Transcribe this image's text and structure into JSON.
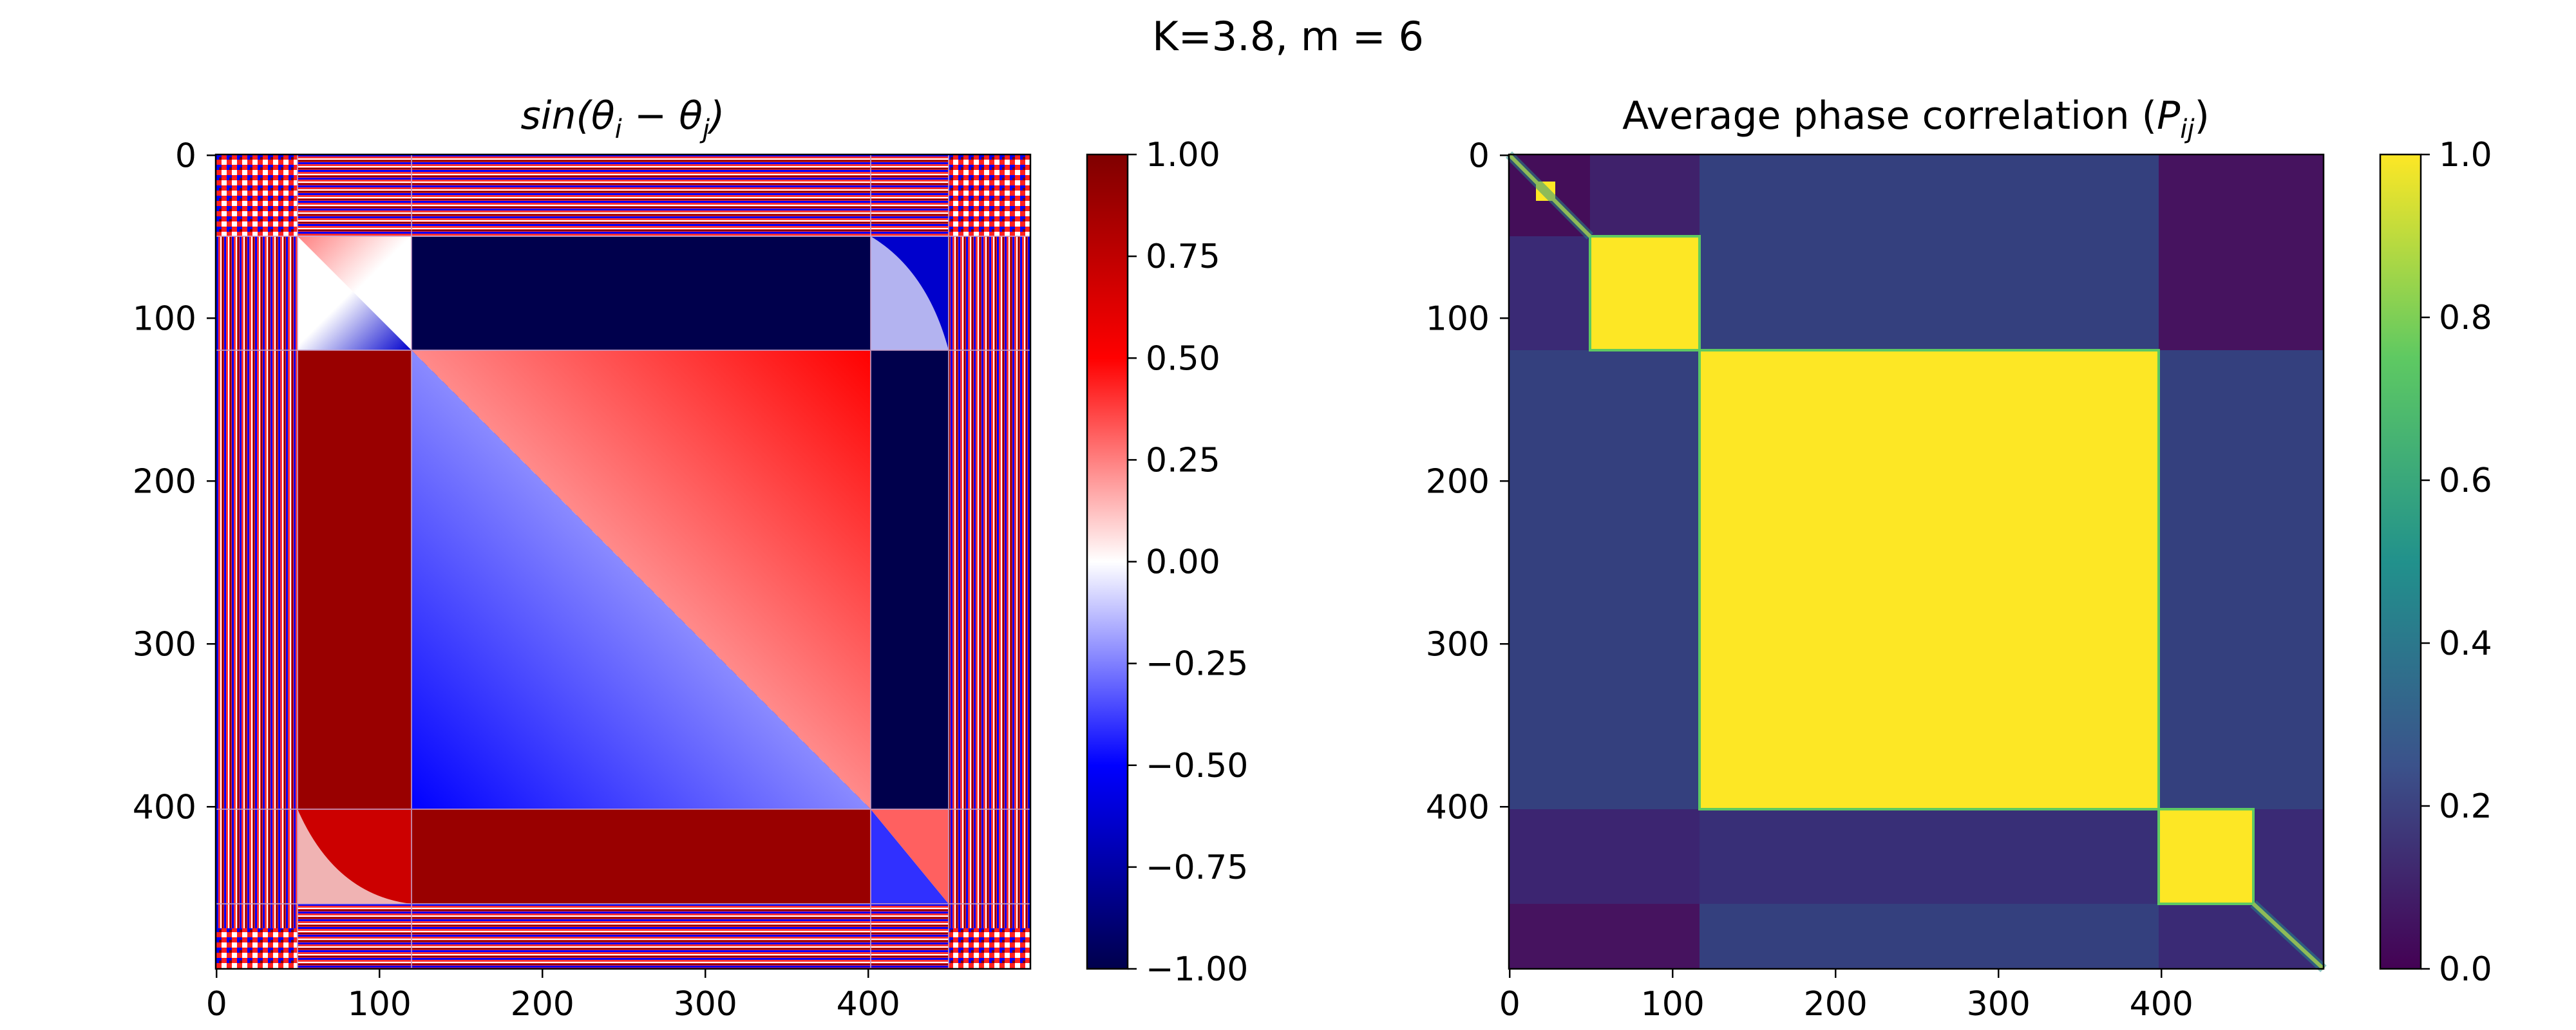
{
  "suptitle": "K=3.8, m = 6",
  "chart_data": [
    {
      "type": "heatmap",
      "title": "sin(θi − θj)",
      "title_parts": {
        "fn": "sin(",
        "a": "θ",
        "a_sub": "i",
        "minus": " − ",
        "b": "θ",
        "b_sub": "j",
        "close": ")"
      },
      "matrix_size": 500,
      "colormap": "seismic",
      "value_range": [
        -1.0,
        1.0
      ],
      "cluster_boundaries": [
        50,
        120,
        402,
        460
      ],
      "xticks": [
        0,
        100,
        200,
        300,
        400
      ],
      "yticks": [
        0,
        100,
        200,
        300,
        400
      ],
      "xticklabels": [
        "0",
        "100",
        "200",
        "300",
        "400"
      ],
      "yticklabels": [
        "0",
        "100",
        "200",
        "300",
        "400"
      ],
      "colorbar_ticks": [
        1.0,
        0.75,
        0.5,
        0.25,
        0.0,
        -0.25,
        -0.5,
        -0.75,
        -1.0
      ],
      "colorbar_ticklabels": [
        "1.00",
        "0.75",
        "0.50",
        "0.25",
        "0.00",
        "−0.25",
        "−0.50",
        "−0.75",
        "−1.00"
      ]
    },
    {
      "type": "heatmap",
      "title": "Average phase correlation (Pij)",
      "title_parts": {
        "text": "Average phase correlation (",
        "p": "P",
        "p_sub": "ij",
        "close": ")"
      },
      "matrix_size": 500,
      "colormap": "viridis",
      "value_range": [
        0.0,
        1.0
      ],
      "blocks": [
        {
          "range": [
            50,
            120
          ],
          "value": 1.0
        },
        {
          "range": [
            120,
            402
          ],
          "value": 1.0
        },
        {
          "range": [
            402,
            460
          ],
          "value": 1.0
        }
      ],
      "off_block_value_approx": 0.15,
      "xticks": [
        0,
        100,
        200,
        300,
        400
      ],
      "yticks": [
        0,
        100,
        200,
        300,
        400
      ],
      "xticklabels": [
        "0",
        "100",
        "200",
        "300",
        "400"
      ],
      "yticklabels": [
        "0",
        "100",
        "200",
        "300",
        "400"
      ],
      "colorbar_ticks": [
        1.0,
        0.8,
        0.6,
        0.4,
        0.2,
        0.0
      ],
      "colorbar_ticklabels": [
        "1.0",
        "0.8",
        "0.6",
        "0.4",
        "0.2",
        "0.0"
      ]
    }
  ],
  "colors": {
    "seismic": [
      "#00004c",
      "#0000ff",
      "#ffffff",
      "#ff0000",
      "#7f0000"
    ],
    "viridis": [
      "#440154",
      "#3b528b",
      "#21918c",
      "#5ec962",
      "#fde725"
    ]
  }
}
